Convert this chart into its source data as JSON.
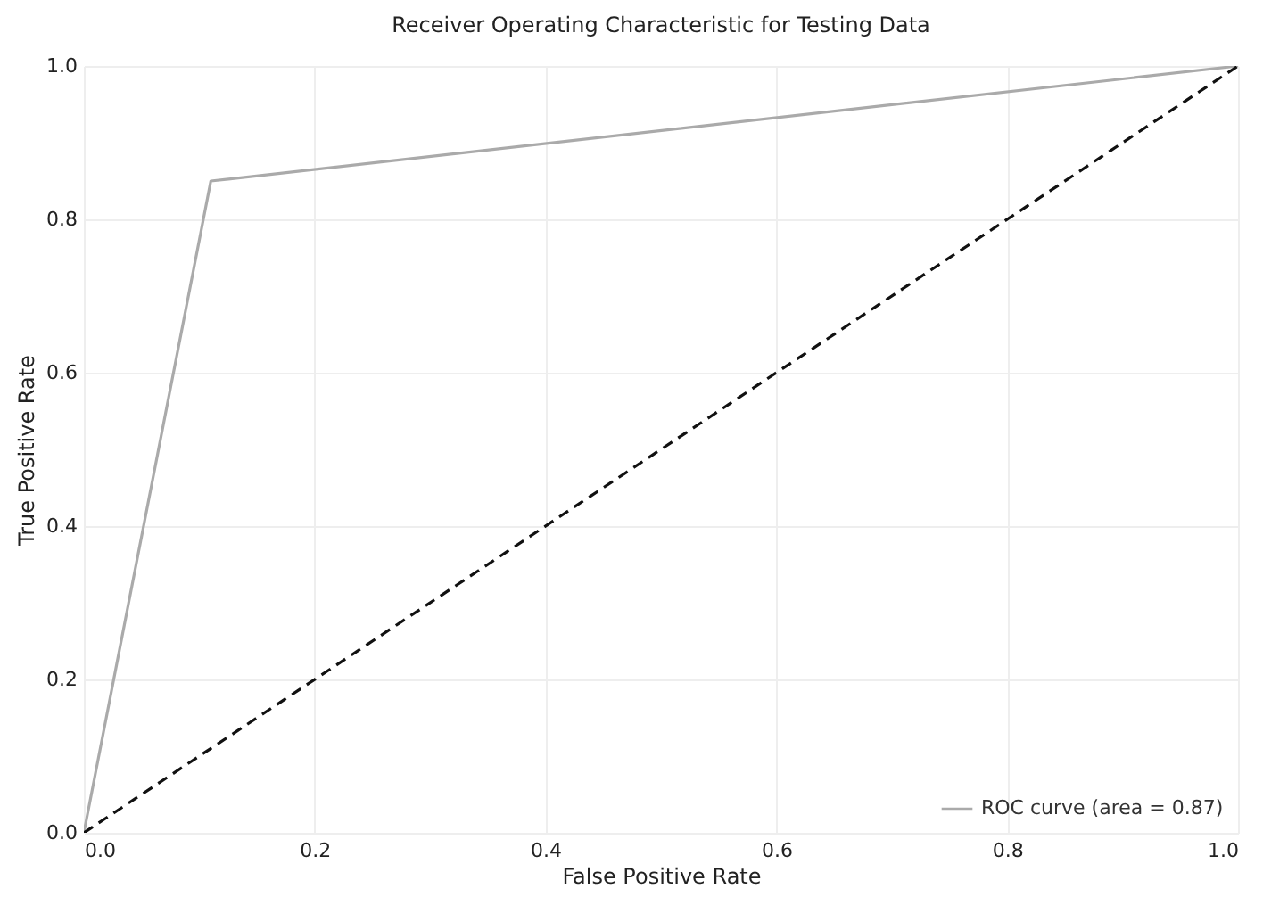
{
  "chart_data": {
    "type": "line",
    "title": "Receiver Operating Characteristic for Testing Data",
    "xlabel": "False Positive Rate",
    "ylabel": "True Positive Rate",
    "series": [
      {
        "name": "ROC curve (area = 0.87)",
        "color": "#aaaaaa",
        "x": [
          0,
          0.11,
          1
        ],
        "values": [
          0,
          0.85,
          1
        ],
        "line_style": "solid"
      },
      {
        "color": "#111111",
        "x": [
          0,
          1
        ],
        "values": [
          0,
          1
        ],
        "line_style": "dashed"
      }
    ],
    "xlim": [
      0,
      1
    ],
    "ylim": [
      0,
      1
    ],
    "xticks": [
      {
        "value": 0,
        "label": "0.0"
      },
      0.2,
      0.4,
      0.6,
      0.8,
      {
        "value": 1,
        "label": "1.0"
      }
    ],
    "yticks": [
      {
        "value": 0,
        "label": "0.0"
      },
      0.2,
      0.4,
      0.6,
      0.8,
      {
        "value": 1,
        "label": "1.0"
      }
    ],
    "grid": true,
    "legend": "bottom right",
    "marker": "none"
  }
}
